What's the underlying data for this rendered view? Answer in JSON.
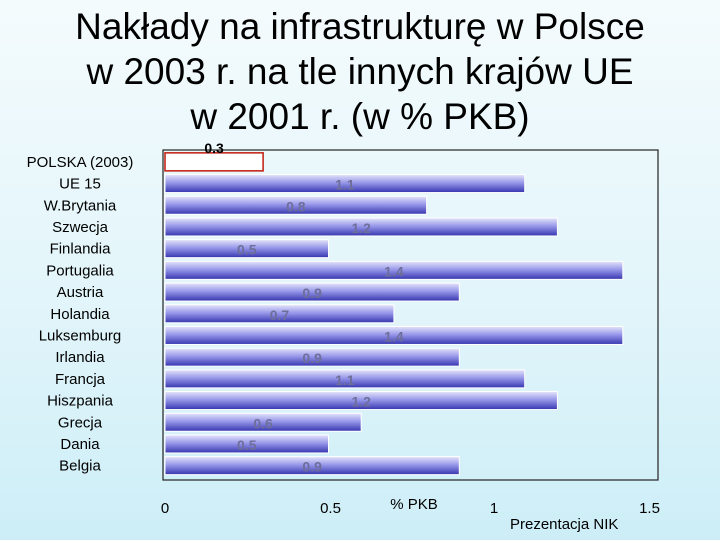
{
  "title": {
    "line1": "Nakłady na infrastrukturę w Polsce",
    "line2": "w 2003 r. na tle innych krajów UE",
    "line3": "w 2001 r. (w % PKB)"
  },
  "footer": "Prezentacja NIK",
  "chart_data": {
    "type": "bar",
    "orientation": "horizontal",
    "categories": [
      "POLSKA (2003)",
      "UE 15",
      "W.Brytania",
      "Szwecja",
      "Finlandia",
      "Portugalia",
      "Austria",
      "Holandia",
      "Luksemburg",
      "Irlandia",
      "Francja",
      "Hiszpania",
      "Grecja",
      "Dania",
      "Belgia"
    ],
    "values": [
      0.3,
      1.1,
      0.8,
      1.2,
      0.5,
      1.4,
      0.9,
      0.7,
      1.4,
      0.9,
      1.1,
      1.2,
      0.6,
      0.5,
      0.9
    ],
    "value_labels": [
      "0.3",
      "1.1",
      "0.8",
      "1.2",
      "0.5",
      "1.4",
      "0.9",
      "0.7",
      "1.4",
      "0.9",
      "1.1",
      "1.2",
      "0.6",
      "0.5",
      "0.9"
    ],
    "x_ticks": [
      "0",
      "0.5",
      "1",
      "1.5"
    ],
    "x_tick_values": [
      0,
      0.5,
      1,
      1.5
    ],
    "xlabel": "% PKB",
    "xlim": [
      0,
      1.5
    ],
    "grid": false,
    "colors": {
      "highlight_fill": "#ffffff",
      "highlight_border": "#c4281c",
      "bar_light": "#d8d8f6",
      "bar_mid": "#8a8ae8",
      "bar_dark": "#3a3ab6",
      "frame": "#222222"
    }
  }
}
